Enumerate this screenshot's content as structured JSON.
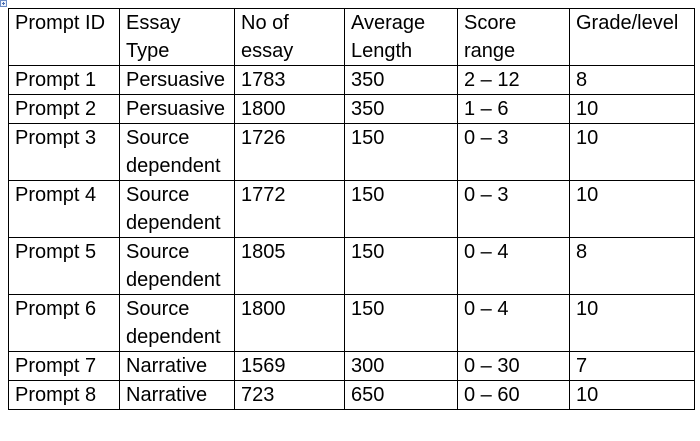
{
  "table": {
    "headers": [
      "Prompt ID",
      "Essay Type",
      "No of essay",
      "Average Length",
      "Score range",
      "Grade/level"
    ],
    "rows": [
      [
        "Prompt 1",
        "Persuasive",
        "1783",
        "350",
        "2 – 12",
        "8"
      ],
      [
        "Prompt 2",
        "Persuasive",
        "1800",
        "350",
        "1 – 6",
        "10"
      ],
      [
        "Prompt 3",
        "Source dependent",
        "1726",
        "150",
        "0 – 3",
        "10"
      ],
      [
        "Prompt 4",
        "Source dependent",
        "1772",
        "150",
        "0 – 3",
        "10"
      ],
      [
        "Prompt 5",
        "Source dependent",
        "1805",
        "150",
        "0 – 4",
        "8"
      ],
      [
        "Prompt 6",
        "Source dependent",
        "1800",
        "150",
        "0 – 4",
        "10"
      ],
      [
        "Prompt 7",
        "Narrative",
        "1569",
        "300",
        "0 – 30",
        "7"
      ],
      [
        "Prompt 8",
        "Narrative",
        "723",
        "650",
        "0 – 60",
        "10"
      ]
    ]
  }
}
